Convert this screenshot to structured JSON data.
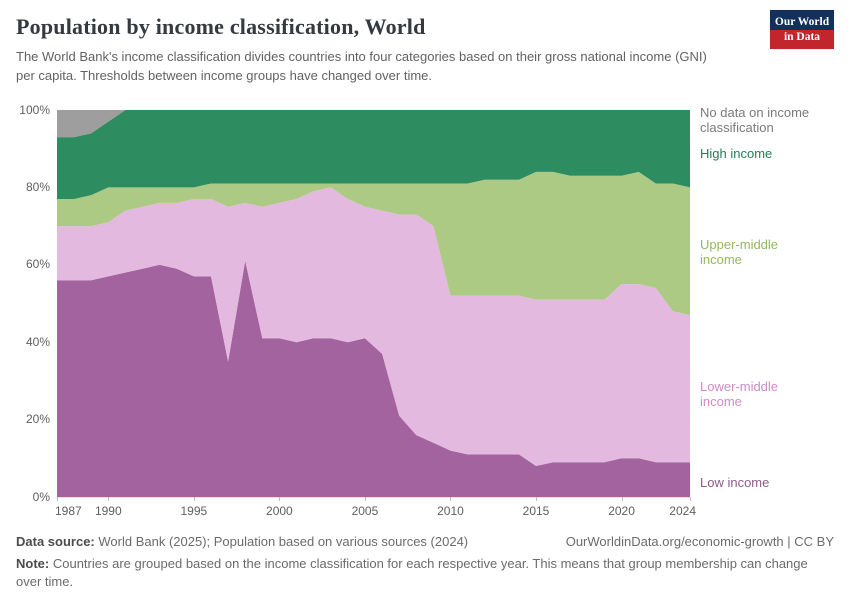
{
  "header": {
    "title": "Population by income classification, World",
    "subtitle": "The World Bank's income classification divides countries into four categories based on their gross national income (GNI) per capita. Thresholds between income groups have changed over time.",
    "logo_line1": "Our World",
    "logo_line2": "in Data"
  },
  "chart_data": {
    "type": "area",
    "stacked": true,
    "percentage": true,
    "title": "Population by income classification, World",
    "ylim": [
      0,
      100
    ],
    "y_ticks": [
      0,
      20,
      40,
      60,
      80,
      100
    ],
    "x_ticks": [
      1987,
      1990,
      1995,
      2000,
      2005,
      2010,
      2015,
      2020,
      2024
    ],
    "x": [
      1987,
      1988,
      1989,
      1990,
      1991,
      1992,
      1993,
      1994,
      1995,
      1996,
      1997,
      1998,
      1999,
      2000,
      2001,
      2002,
      2003,
      2004,
      2005,
      2006,
      2007,
      2008,
      2009,
      2010,
      2011,
      2012,
      2013,
      2014,
      2015,
      2016,
      2017,
      2018,
      2019,
      2020,
      2021,
      2022,
      2023,
      2024
    ],
    "series": [
      {
        "name": "Low income",
        "color": "#a2639e",
        "label_color": "#8e5a8a",
        "values": [
          56,
          56,
          56,
          57,
          58,
          59,
          60,
          59,
          57,
          57,
          35,
          61,
          41,
          41,
          40,
          41,
          41,
          40,
          41,
          37,
          21,
          16,
          14,
          12,
          11,
          11,
          11,
          11,
          8,
          9,
          9,
          9,
          9,
          10,
          10,
          9,
          9,
          9
        ]
      },
      {
        "name": "Lower-middle income",
        "color": "#e4b9e0",
        "label_color": "#cf8bc8",
        "values": [
          14,
          14,
          14,
          14,
          16,
          16,
          16,
          17,
          20,
          20,
          40,
          15,
          34,
          35,
          37,
          38,
          39,
          37,
          34,
          37,
          52,
          57,
          56,
          40,
          41,
          41,
          41,
          41,
          43,
          42,
          42,
          42,
          42,
          45,
          45,
          45,
          39,
          38
        ]
      },
      {
        "name": "Upper-middle income",
        "color": "#adca85",
        "label_color": "#94b85e",
        "values": [
          7,
          7,
          8,
          9,
          6,
          5,
          4,
          4,
          3,
          4,
          6,
          5,
          6,
          5,
          4,
          2,
          1,
          4,
          6,
          7,
          8,
          8,
          11,
          29,
          29,
          30,
          30,
          30,
          33,
          33,
          32,
          32,
          32,
          28,
          29,
          27,
          33,
          33
        ]
      },
      {
        "name": "High income",
        "color": "#2e8c61",
        "label_color": "#257d56",
        "values": [
          16,
          16,
          16,
          17,
          20,
          20,
          20,
          20,
          20,
          19,
          19,
          19,
          19,
          19,
          19,
          19,
          19,
          19,
          19,
          19,
          19,
          19,
          19,
          19,
          19,
          18,
          18,
          18,
          16,
          16,
          17,
          17,
          17,
          17,
          16,
          19,
          19,
          20
        ]
      },
      {
        "name": "No data on income classification",
        "color": "#9e9e9e",
        "label_color": "#7a7a7a",
        "values": [
          7,
          7,
          6,
          3,
          0,
          0,
          0,
          0,
          0,
          0,
          0,
          0,
          0,
          0,
          0,
          0,
          0,
          0,
          0,
          0,
          0,
          0,
          0,
          0,
          0,
          0,
          0,
          0,
          0,
          0,
          0,
          0,
          0,
          0,
          0,
          0,
          0,
          0
        ]
      }
    ]
  },
  "footer": {
    "data_source_label": "Data source:",
    "data_source_text": "World Bank (2025); Population based on various sources (2024)",
    "attribution": "OurWorldinData.org/economic-growth | CC BY",
    "note_label": "Note:",
    "note_text": "Countries are grouped based on the income classification for each respective year. This means that group membership can change over time."
  }
}
